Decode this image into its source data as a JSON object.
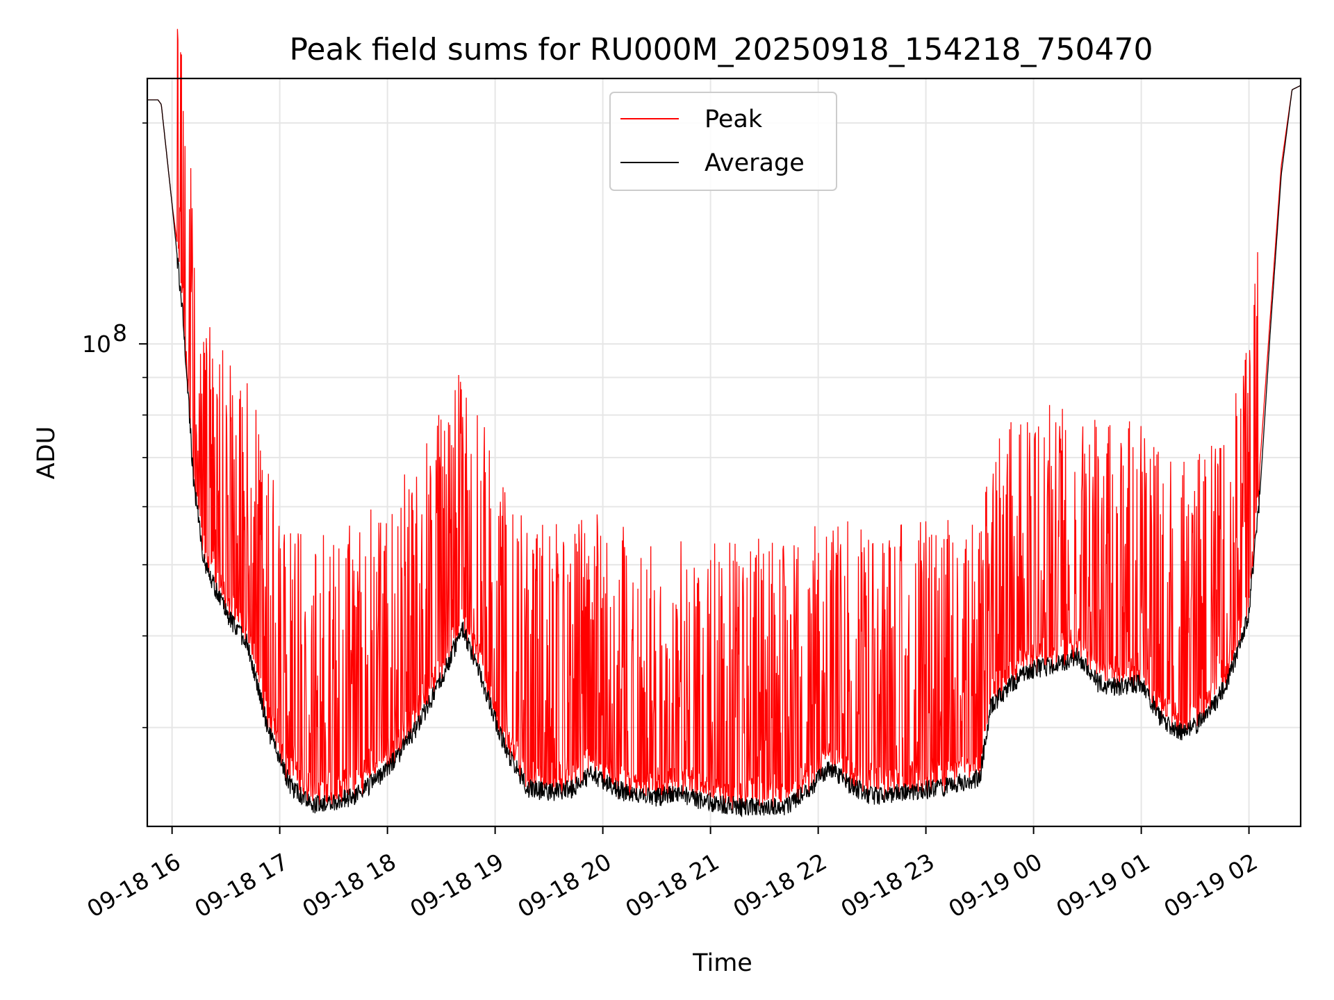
{
  "chart_data": {
    "type": "line",
    "title": "Peak field sums for RU000M_20250918_154218_750470",
    "xlabel": "Time",
    "ylabel": "ADU",
    "yscale": "log",
    "ylim": [
      22000000,
      230000000
    ],
    "xlim_hours": [
      15.77,
      26.48
    ],
    "x_ticks": [
      {
        "hour": 16,
        "label": "09-18 16"
      },
      {
        "hour": 17,
        "label": "09-18 17"
      },
      {
        "hour": 18,
        "label": "09-18 18"
      },
      {
        "hour": 19,
        "label": "09-18 19"
      },
      {
        "hour": 20,
        "label": "09-18 20"
      },
      {
        "hour": 21,
        "label": "09-18 21"
      },
      {
        "hour": 22,
        "label": "09-18 22"
      },
      {
        "hour": 23,
        "label": "09-18 23"
      },
      {
        "hour": 24,
        "label": "09-19 00"
      },
      {
        "hour": 25,
        "label": "09-19 01"
      },
      {
        "hour": 26,
        "label": "09-19 02"
      }
    ],
    "y_major_tick": {
      "value": 100000000,
      "label_base": "10",
      "label_exp": "8"
    },
    "y_minor_ticks": [
      30000000,
      40000000,
      50000000,
      60000000,
      70000000,
      80000000,
      90000000,
      200000000
    ],
    "legend": {
      "position": "upper-center",
      "entries": [
        "Peak",
        "Average"
      ]
    },
    "series": [
      {
        "name": "Peak",
        "color": "#ff0000",
        "spikes": "frequent spikes 15%-130% above Average",
        "x_hours": [
          15.77,
          15.87,
          15.9,
          16.0,
          16.1,
          16.2,
          16.3,
          16.5,
          16.7,
          16.9,
          17.1,
          17.3,
          17.5,
          17.7,
          17.9,
          18.1,
          18.3,
          18.5,
          18.7,
          18.9,
          19.1,
          19.3,
          19.5,
          19.7,
          19.9,
          20.1,
          20.3,
          20.5,
          20.7,
          20.9,
          21.1,
          21.3,
          21.5,
          21.7,
          21.9,
          22.1,
          22.3,
          22.5,
          22.7,
          22.9,
          23.1,
          23.3,
          23.5,
          23.6,
          23.8,
          24.0,
          24.2,
          24.4,
          24.6,
          24.8,
          25.0,
          25.2,
          25.4,
          25.6,
          25.8,
          26.0,
          26.1,
          26.2,
          26.3,
          26.4,
          26.48
        ],
        "values": [
          215000000,
          215000000,
          212000000,
          155000000,
          120000000,
          78000000,
          60000000,
          52000000,
          46000000,
          33000000,
          28500000,
          26500000,
          26200000,
          26400000,
          28000000,
          31000000,
          34000000,
          38500000,
          44000000,
          36000000,
          30000000,
          27000000,
          26600000,
          26800000,
          28000000,
          27000000,
          26300000,
          26100000,
          26600000,
          25900000,
          25600000,
          25400000,
          25300000,
          25500000,
          26500000,
          28500000,
          27000000,
          26200000,
          26400000,
          26500000,
          26800000,
          27200000,
          27600000,
          36000000,
          38500000,
          40000000,
          40500000,
          41500000,
          37500000,
          36500000,
          37000000,
          33500000,
          32500000,
          34000000,
          37500000,
          47000000,
          68000000,
          110000000,
          175000000,
          222000000,
          225000000
        ]
      },
      {
        "name": "Average",
        "color": "#000000",
        "x_hours": [
          15.77,
          15.87,
          15.9,
          16.0,
          16.1,
          16.2,
          16.3,
          16.5,
          16.7,
          16.9,
          17.1,
          17.3,
          17.5,
          17.7,
          17.9,
          18.1,
          18.3,
          18.5,
          18.7,
          18.9,
          19.1,
          19.3,
          19.5,
          19.7,
          19.9,
          20.1,
          20.3,
          20.5,
          20.7,
          20.9,
          21.1,
          21.3,
          21.5,
          21.7,
          21.9,
          22.1,
          22.3,
          22.5,
          22.7,
          22.9,
          23.1,
          23.3,
          23.5,
          23.6,
          23.8,
          24.0,
          24.2,
          24.4,
          24.6,
          24.8,
          25.0,
          25.2,
          25.4,
          25.6,
          25.8,
          26.0,
          26.1,
          26.2,
          26.3,
          26.4,
          26.48
        ],
        "values": [
          215000000,
          215000000,
          212000000,
          155000000,
          110000000,
          65000000,
          50000000,
          43000000,
          39000000,
          29500000,
          25000000,
          23500000,
          23800000,
          24200000,
          25500000,
          27500000,
          30500000,
          35000000,
          41000000,
          34000000,
          28000000,
          24800000,
          24500000,
          24700000,
          26000000,
          24800000,
          24200000,
          24100000,
          24500000,
          23900000,
          23600000,
          23400000,
          23300000,
          23500000,
          24500000,
          26500000,
          25000000,
          24200000,
          24400000,
          24500000,
          24800000,
          25200000,
          25600000,
          32000000,
          34500000,
          36000000,
          36500000,
          37500000,
          34500000,
          34000000,
          34500000,
          30500000,
          29500000,
          31000000,
          34500000,
          43000000,
          62000000,
          105000000,
          170000000,
          222000000,
          225000000
        ]
      }
    ]
  }
}
